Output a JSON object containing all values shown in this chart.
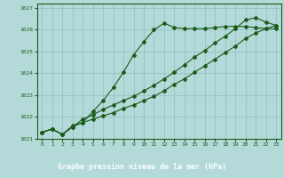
{
  "bg_color": "#b3d9d9",
  "label_bg_color": "#2d6e2d",
  "grid_color": "#8fbfbf",
  "line_color": "#1a5c1a",
  "text_color": "#1a5c1a",
  "label_text_color": "#ffffff",
  "xlabel": "Graphe pression niveau de la mer (hPa)",
  "ylim": [
    1021.0,
    1027.2
  ],
  "xlim": [
    -0.5,
    23.5
  ],
  "yticks": [
    1021,
    1022,
    1023,
    1024,
    1025,
    1026,
    1027
  ],
  "xticks": [
    0,
    1,
    2,
    3,
    4,
    5,
    6,
    7,
    8,
    9,
    10,
    11,
    12,
    13,
    14,
    15,
    16,
    17,
    18,
    19,
    20,
    21,
    22,
    23
  ],
  "line1_x": [
    0,
    1,
    2,
    3,
    4,
    5,
    6,
    7,
    8,
    9,
    10,
    11,
    12,
    13,
    14,
    15,
    16,
    17,
    18,
    19,
    20,
    21,
    22,
    23
  ],
  "line1_y": [
    1021.3,
    1021.45,
    1021.2,
    1021.6,
    1021.75,
    1022.25,
    1022.75,
    1023.35,
    1024.05,
    1024.85,
    1025.45,
    1026.0,
    1026.3,
    1026.1,
    1026.05,
    1026.05,
    1026.05,
    1026.1,
    1026.15,
    1026.15,
    1026.15,
    1026.1,
    1026.05,
    1026.05
  ],
  "line2_x": [
    0,
    1,
    2,
    3,
    4,
    5,
    6,
    7,
    8,
    9,
    10,
    11,
    12,
    13,
    14,
    15,
    16,
    17,
    18,
    19,
    20,
    21,
    22,
    23
  ],
  "line2_y": [
    1021.3,
    1021.45,
    1021.2,
    1021.55,
    1021.9,
    1022.1,
    1022.35,
    1022.55,
    1022.75,
    1022.95,
    1023.2,
    1023.45,
    1023.75,
    1024.05,
    1024.4,
    1024.75,
    1025.05,
    1025.4,
    1025.7,
    1026.05,
    1026.45,
    1026.55,
    1026.35,
    1026.2
  ],
  "line3_x": [
    0,
    1,
    2,
    3,
    4,
    5,
    6,
    7,
    8,
    9,
    10,
    11,
    12,
    13,
    14,
    15,
    16,
    17,
    18,
    19,
    20,
    21,
    22,
    23
  ],
  "line3_y": [
    1021.3,
    1021.45,
    1021.2,
    1021.55,
    1021.75,
    1021.9,
    1022.05,
    1022.2,
    1022.4,
    1022.55,
    1022.75,
    1022.95,
    1023.2,
    1023.5,
    1023.75,
    1024.05,
    1024.35,
    1024.65,
    1024.95,
    1025.25,
    1025.6,
    1025.85,
    1026.05,
    1026.2
  ]
}
